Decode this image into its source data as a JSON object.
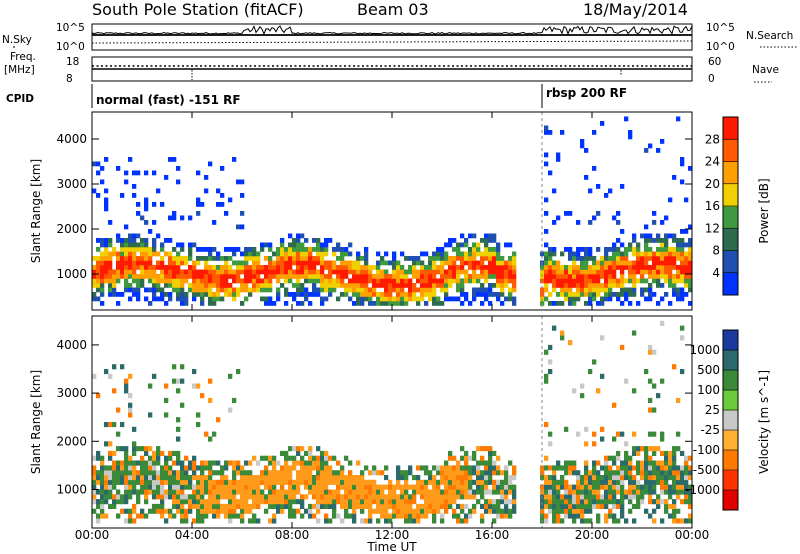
{
  "header": {
    "station": "South Pole Station (fitACF)",
    "beam": "Beam 03",
    "date": "18/May/2014"
  },
  "summary": {
    "nsky_label": "N.Sky",
    "nsearch_label": "N.Search",
    "nsky_ticks": [
      "10^5",
      "10^0"
    ],
    "nsearch_ticks": [
      "10^5",
      "10^0"
    ],
    "freq_label_1": "Freq.",
    "freq_label_2": "[MHz]",
    "freq_ticks": [
      "18",
      "8"
    ],
    "nave_label": "Nave",
    "nave_ticks": [
      "60",
      "0"
    ],
    "cpid_label": "CPID",
    "cpid_segments": [
      {
        "start_hour": 0,
        "end_hour": 18,
        "label": "normal (fast) -151 RF"
      },
      {
        "start_hour": 18,
        "end_hour": 24,
        "label": "rbsp 200 RF"
      }
    ]
  },
  "colors": {
    "power": [
      "#0000ff",
      "#1f3fb3",
      "#2e6b4e",
      "#3a8a3a",
      "#8fcf3f",
      "#f0d000",
      "#ffa000",
      "#ff6000",
      "#ff2000",
      "#d40000"
    ],
    "velocity": [
      "#1a3a9a",
      "#2a6a6a",
      "#3a8a3a",
      "#6acc3a",
      "#c8c8c8",
      "#ffcc33",
      "#ff9a1a",
      "#ff6a00",
      "#ff3300",
      "#e60000"
    ]
  },
  "chart_data": [
    {
      "type": "heatmap",
      "name": "power",
      "ylabel": "Slant Range [km]",
      "xlabel": "",
      "x_range_hours": [
        0,
        24
      ],
      "ylim": [
        200,
        4600
      ],
      "y_ticks": [
        1000,
        2000,
        3000,
        4000
      ],
      "colorbar_label": "Power [dB]",
      "colorbar_ticks": [
        "4",
        "8",
        "12",
        "16",
        "20",
        "24",
        "28"
      ],
      "colorbar_range": [
        0,
        32
      ]
    },
    {
      "type": "heatmap",
      "name": "velocity",
      "ylabel": "Slant Range [km]",
      "xlabel": "Time UT",
      "x_range_hours": [
        0,
        24
      ],
      "ylim": [
        200,
        4600
      ],
      "y_ticks": [
        1000,
        2000,
        3000,
        4000
      ],
      "colorbar_label": "Velocity [m s^-1]",
      "colorbar_ticks": [
        "1000",
        "500",
        "100",
        "25",
        "-25",
        "-100",
        "-500",
        "-1000"
      ]
    }
  ],
  "x_ticks": [
    "00:00",
    "04:00",
    "08:00",
    "12:00",
    "16:00",
    "20:00",
    "00:00"
  ]
}
